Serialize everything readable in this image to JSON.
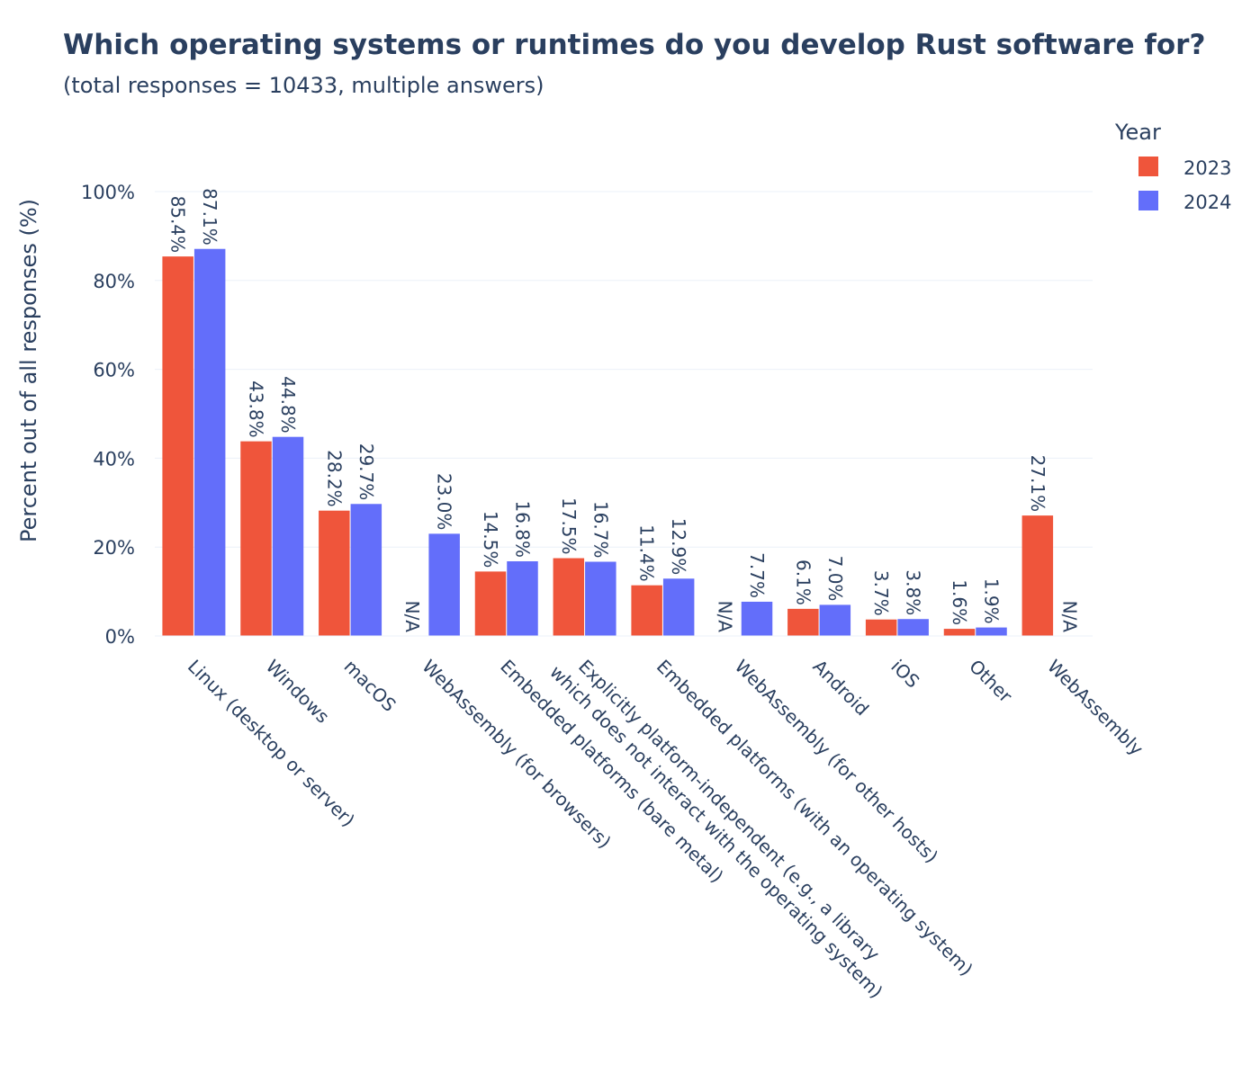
{
  "chart_data": {
    "type": "bar",
    "title": "Which operating systems or runtimes do you develop Rust software for?",
    "subtitle": "(total responses = 10433, multiple answers)",
    "ylabel": "Percent out of all responses (%)",
    "xlabel": "",
    "ylim": [
      0,
      100
    ],
    "y_ticks": [
      0,
      20,
      40,
      60,
      80,
      100
    ],
    "y_tick_labels": [
      "0%",
      "20%",
      "40%",
      "60%",
      "80%",
      "100%"
    ],
    "grid": true,
    "legend": {
      "title": "Year",
      "placement": "top-right"
    },
    "categories": [
      "Linux (desktop or server)",
      "Windows",
      "macOS",
      "WebAssembly (for browsers)",
      "Embedded platforms (bare metal)",
      "Explicitly platform-independent (e.g., a library\nwhich does not interact with the operating system)",
      "Embedded platforms (with an operating system)",
      "WebAssembly (for other hosts)",
      "Android",
      "iOS",
      "Other",
      "WebAssembly"
    ],
    "series": [
      {
        "name": "2023",
        "color": "#ef553b",
        "values": [
          85.4,
          43.8,
          28.2,
          null,
          14.5,
          17.5,
          11.4,
          null,
          6.1,
          3.7,
          1.6,
          27.1
        ],
        "labels": [
          "85.4%",
          "43.8%",
          "28.2%",
          "N/A",
          "14.5%",
          "17.5%",
          "11.4%",
          "N/A",
          "6.1%",
          "3.7%",
          "1.6%",
          "27.1%"
        ]
      },
      {
        "name": "2024",
        "color": "#636efa",
        "values": [
          87.1,
          44.8,
          29.7,
          23.0,
          16.8,
          16.7,
          12.9,
          7.7,
          7.0,
          3.8,
          1.9,
          null
        ],
        "labels": [
          "87.1%",
          "44.8%",
          "29.7%",
          "23.0%",
          "16.8%",
          "16.7%",
          "12.9%",
          "7.7%",
          "7.0%",
          "3.8%",
          "1.9%",
          "N/A"
        ]
      }
    ]
  }
}
